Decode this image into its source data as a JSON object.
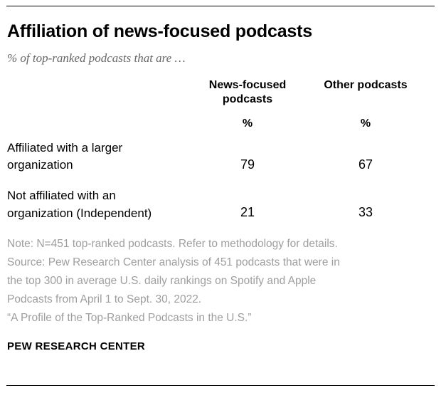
{
  "chart_data": {
    "type": "table",
    "title": "Affiliation of news-focused podcasts",
    "subtitle": "% of top-ranked podcasts that are …",
    "columns": [
      "News-focused podcasts",
      "Other podcasts"
    ],
    "units": [
      "%",
      "%"
    ],
    "rows": [
      {
        "label": "Affiliated with a larger organization",
        "values": [
          79,
          67
        ]
      },
      {
        "label": "Not affiliated with an organization (Independent)",
        "values": [
          21,
          33
        ]
      }
    ],
    "notes": [
      "Note: N=451 top-ranked podcasts. Refer to methodology for details.",
      "Source: Pew Research Center analysis of 451 podcasts that were in",
      "the top 300 in average U.S. daily rankings on Spotify and Apple",
      "Podcasts from April 1 to Sept. 30, 2022.",
      "“A Profile of the Top-Ranked Podcasts in the U.S.”"
    ],
    "footer": "PEW RESEARCH CENTER",
    "colors": {
      "title": "#000000",
      "subtitle": "#666666",
      "note_text": "#9e9e9e",
      "rule": "#000000"
    }
  }
}
